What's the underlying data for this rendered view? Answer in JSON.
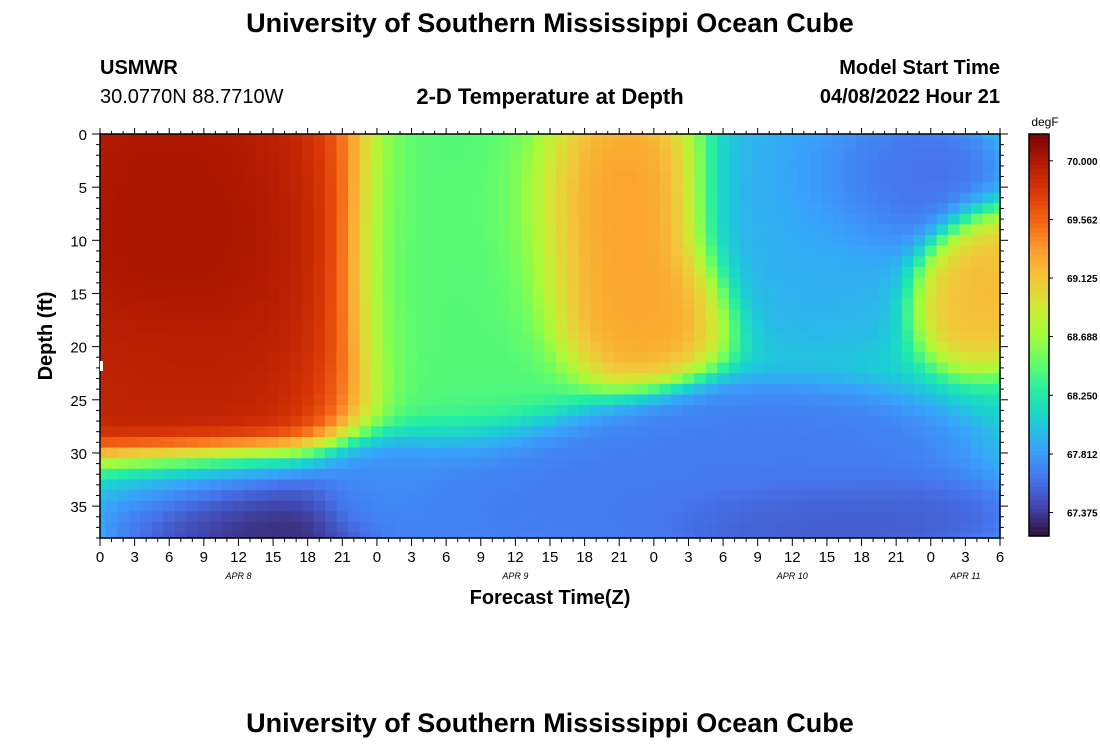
{
  "page": {
    "title": "University of Southern Mississippi Ocean Cube",
    "footer_title": "University of Southern Mississippi Ocean Cube",
    "station": "USMWR",
    "location": "30.0770N  88.7710W",
    "subtitle": "2-D Temperature at Depth",
    "model_start_label": "Model Start Time",
    "model_start_value": "04/08/2022 Hour 21"
  },
  "chart_data": {
    "type": "heatmap",
    "title": "2-D Temperature at Depth",
    "xlabel": "Forecast Time(Z)",
    "ylabel": "Depth (ft)",
    "ylim": [
      0,
      38
    ],
    "y_ticks": [
      "0",
      "5",
      "10",
      "15",
      "20",
      "25",
      "30",
      "35"
    ],
    "x_ticks": [
      "0",
      "3",
      "6",
      "9",
      "12",
      "15",
      "18",
      "21",
      "0",
      "3",
      "6",
      "9",
      "12",
      "15",
      "18",
      "21",
      "0",
      "3",
      "6",
      "9",
      "12",
      "15",
      "18",
      "21",
      "0",
      "3",
      "6"
    ],
    "x_range_hours": [
      0,
      78
    ],
    "date_labels": [
      {
        "label": "APR 8",
        "hour": 12
      },
      {
        "label": "APR 9",
        "hour": 36
      },
      {
        "label": "APR 10",
        "hour": 60
      },
      {
        "label": "APR 11",
        "hour": 75
      }
    ],
    "colorbar": {
      "unit": "degF",
      "min": 67.2,
      "max": 70.2,
      "ticks": [
        "70.000",
        "69.562",
        "69.125",
        "68.688",
        "68.250",
        "67.812",
        "67.375"
      ],
      "colors": [
        "#30123b",
        "#4145ab",
        "#4675ed",
        "#39a2fc",
        "#1bcfd4",
        "#24eca6",
        "#61fc6c",
        "#a4fc3b",
        "#d1e834",
        "#f3c63a",
        "#fe9b2d",
        "#f36315",
        "#d93806",
        "#b11901",
        "#7a0403"
      ]
    },
    "grid": {
      "nx": 79,
      "ny": 39
    },
    "features": [
      {
        "t": 6,
        "d": 10,
        "v": 70.05,
        "st": 7,
        "sd": 11
      },
      {
        "t": 4,
        "d": 24,
        "v": 69.9,
        "st": 6,
        "sd": 5
      },
      {
        "t": 11,
        "d": 36,
        "v": 67.2,
        "st": 6,
        "sd": 2.5
      },
      {
        "t": 6,
        "d": 33,
        "v": 67.5,
        "st": 6,
        "sd": 2
      },
      {
        "t": 33,
        "d": 11,
        "v": 68.45,
        "st": 4.5,
        "sd": 8
      },
      {
        "t": 44,
        "d": 8,
        "v": 69.35,
        "st": 4,
        "sd": 5
      },
      {
        "t": 46,
        "d": 16,
        "v": 69.3,
        "st": 3.5,
        "sd": 3
      },
      {
        "t": 62,
        "d": 8,
        "v": 67.9,
        "st": 5,
        "sd": 5
      },
      {
        "t": 68,
        "d": 5,
        "v": 67.55,
        "st": 4,
        "sd": 3
      },
      {
        "t": 76,
        "d": 14,
        "v": 69.2,
        "st": 2.5,
        "sd": 3
      },
      {
        "t": 58,
        "d": 31,
        "v": 67.65,
        "st": 7,
        "sd": 3
      },
      {
        "t": 40,
        "d": 34,
        "v": 67.65,
        "st": 8,
        "sd": 3
      },
      {
        "t": 62,
        "d": 36,
        "v": 67.5,
        "st": 7,
        "sd": 2
      },
      {
        "t": 24,
        "d": 34,
        "v": 67.75,
        "st": 3,
        "sd": 2
      }
    ]
  }
}
